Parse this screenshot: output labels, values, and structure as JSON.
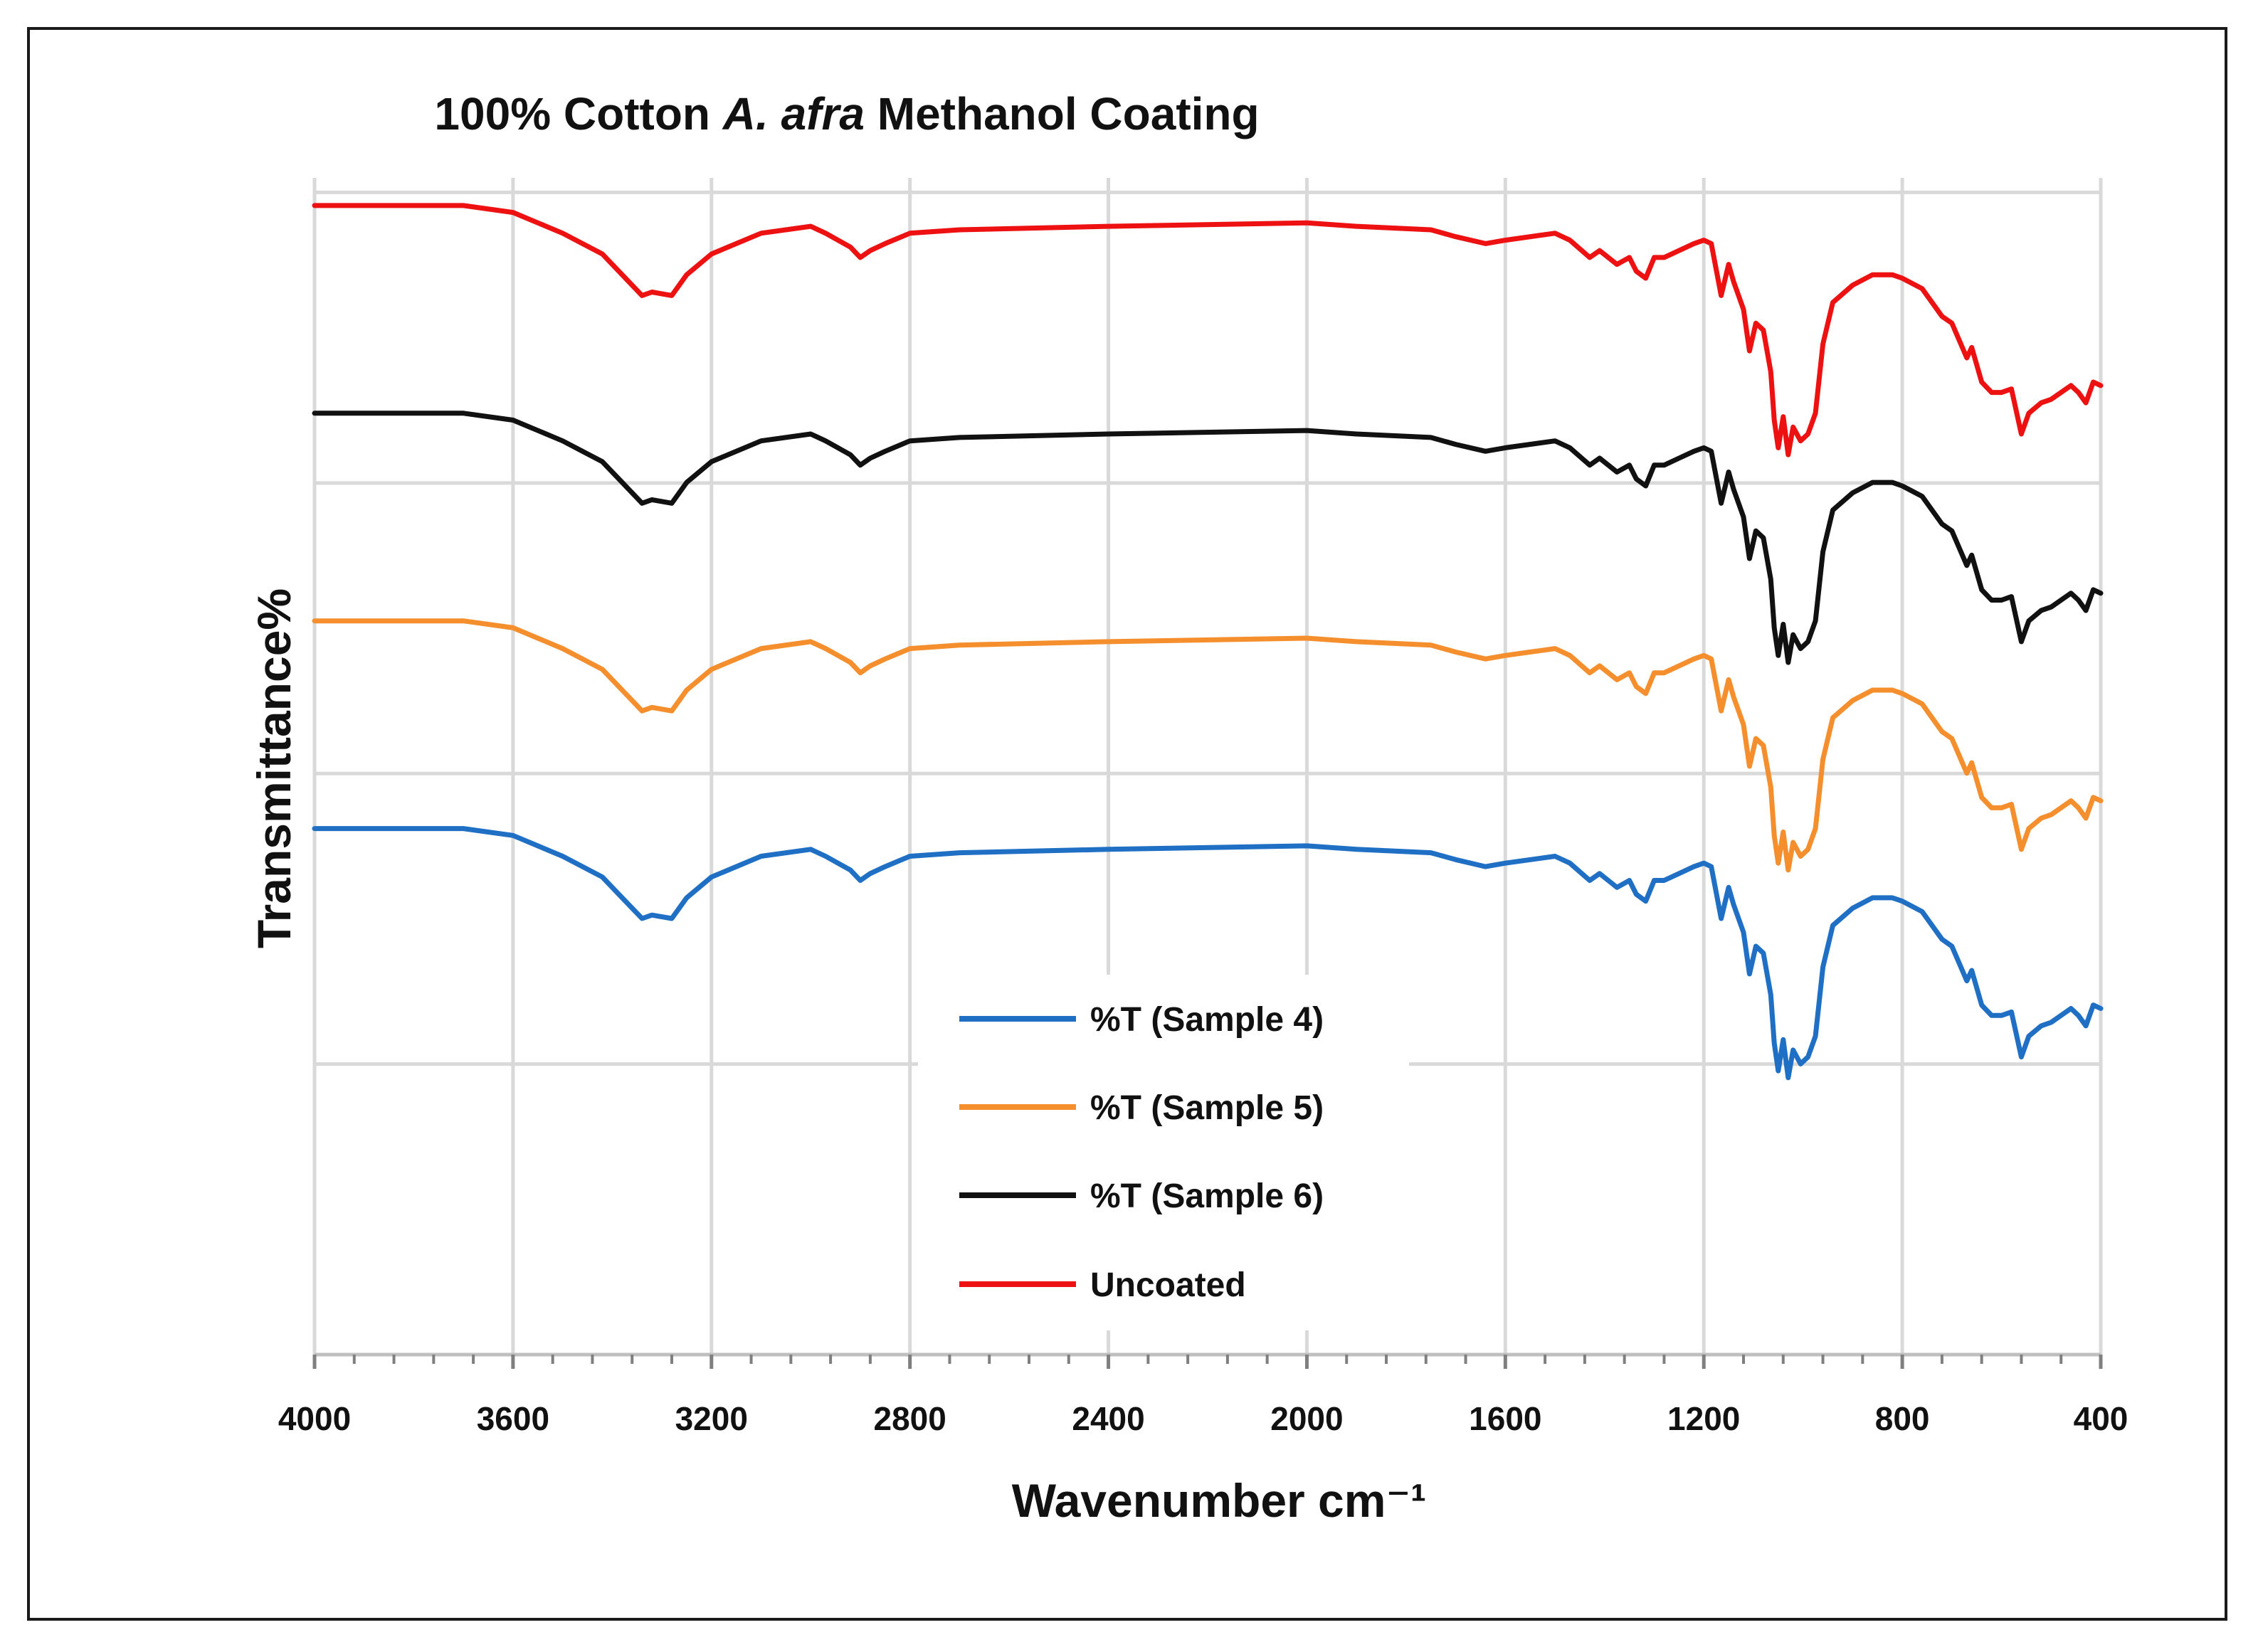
{
  "chart_data": {
    "type": "line",
    "title": {
      "prefix": "100% Cotton ",
      "italic": "A. afra",
      "suffix": " Methanol Coating"
    },
    "xlabel": "Wavenumber cm⁻¹",
    "ylabel": "Transmittance%",
    "xlim": [
      4000,
      400
    ],
    "x_ticks": [
      "4000",
      "3600",
      "3200",
      "2800",
      "2400",
      "2000",
      "1600",
      "1200",
      "800",
      "400"
    ],
    "y_ticks_labels": "none",
    "grid": true,
    "legend_position": "center-bottom",
    "x": [
      4000,
      3700,
      3600,
      3500,
      3420,
      3380,
      3340,
      3320,
      3280,
      3250,
      3200,
      3100,
      3000,
      2970,
      2920,
      2900,
      2880,
      2850,
      2800,
      2700,
      2400,
      2000,
      1900,
      1750,
      1700,
      1640,
      1600,
      1500,
      1470,
      1430,
      1410,
      1375,
      1350,
      1336,
      1317,
      1300,
      1280,
      1250,
      1220,
      1200,
      1185,
      1165,
      1150,
      1140,
      1120,
      1108,
      1095,
      1080,
      1065,
      1058,
      1050,
      1040,
      1030,
      1020,
      1005,
      990,
      975,
      960,
      940,
      900,
      860,
      820,
      800,
      760,
      720,
      700,
      670,
      660,
      640,
      620,
      600,
      580,
      560,
      545,
      520,
      500,
      480,
      460,
      445,
      430,
      415,
      400
    ],
    "series": [
      {
        "name": "%T (Sample 4)",
        "color": "#1f6fc5",
        "values": [
          7.6,
          7.6,
          7.5,
          7.2,
          6.9,
          6.6,
          6.3,
          6.35,
          6.3,
          6.6,
          6.9,
          7.2,
          7.3,
          7.2,
          7.0,
          6.85,
          6.95,
          7.05,
          7.2,
          7.25,
          7.3,
          7.35,
          7.3,
          7.25,
          7.15,
          7.05,
          7.1,
          7.2,
          7.1,
          6.85,
          6.95,
          6.75,
          6.85,
          6.65,
          6.55,
          6.85,
          6.85,
          6.95,
          7.05,
          7.1,
          7.05,
          6.3,
          6.75,
          6.5,
          6.1,
          5.5,
          5.9,
          5.8,
          5.2,
          4.5,
          4.1,
          4.55,
          4.0,
          4.4,
          4.2,
          4.3,
          4.6,
          5.6,
          6.2,
          6.45,
          6.6,
          6.6,
          6.55,
          6.4,
          6.0,
          5.9,
          5.4,
          5.55,
          5.05,
          4.9,
          4.9,
          4.95,
          4.3,
          4.6,
          4.75,
          4.8,
          4.9,
          5.0,
          4.9,
          4.75,
          5.05,
          5.0
        ]
      },
      {
        "name": "%T (Sample 5)",
        "color": "#f58f2e",
        "values": [
          7.6,
          7.6,
          7.5,
          7.2,
          6.9,
          6.6,
          6.3,
          6.35,
          6.3,
          6.6,
          6.9,
          7.2,
          7.3,
          7.2,
          7.0,
          6.85,
          6.95,
          7.05,
          7.2,
          7.25,
          7.3,
          7.35,
          7.3,
          7.25,
          7.15,
          7.05,
          7.1,
          7.2,
          7.1,
          6.85,
          6.95,
          6.75,
          6.85,
          6.65,
          6.55,
          6.85,
          6.85,
          6.95,
          7.05,
          7.1,
          7.05,
          6.3,
          6.75,
          6.5,
          6.1,
          5.5,
          5.9,
          5.8,
          5.2,
          4.5,
          4.1,
          4.55,
          4.0,
          4.4,
          4.2,
          4.3,
          4.6,
          5.6,
          6.2,
          6.45,
          6.6,
          6.6,
          6.55,
          6.4,
          6.0,
          5.9,
          5.4,
          5.55,
          5.05,
          4.9,
          4.9,
          4.95,
          4.3,
          4.6,
          4.75,
          4.8,
          4.9,
          5.0,
          4.9,
          4.75,
          5.05,
          5.0
        ]
      },
      {
        "name": "%T (Sample 6)",
        "color": "#111111",
        "values": [
          7.6,
          7.6,
          7.5,
          7.2,
          6.9,
          6.6,
          6.3,
          6.35,
          6.3,
          6.6,
          6.9,
          7.2,
          7.3,
          7.2,
          7.0,
          6.85,
          6.95,
          7.05,
          7.2,
          7.25,
          7.3,
          7.35,
          7.3,
          7.25,
          7.15,
          7.05,
          7.1,
          7.2,
          7.1,
          6.85,
          6.95,
          6.75,
          6.85,
          6.65,
          6.55,
          6.85,
          6.85,
          6.95,
          7.05,
          7.1,
          7.05,
          6.3,
          6.75,
          6.5,
          6.1,
          5.5,
          5.9,
          5.8,
          5.2,
          4.5,
          4.1,
          4.55,
          4.0,
          4.4,
          4.2,
          4.3,
          4.6,
          5.6,
          6.2,
          6.45,
          6.6,
          6.6,
          6.55,
          6.4,
          6.0,
          5.9,
          5.4,
          5.55,
          5.05,
          4.9,
          4.9,
          4.95,
          4.3,
          4.6,
          4.75,
          4.8,
          4.9,
          5.0,
          4.9,
          4.75,
          5.05,
          5.0
        ]
      },
      {
        "name": "Uncoated",
        "color": "#ee1111",
        "values": [
          7.6,
          7.6,
          7.5,
          7.2,
          6.9,
          6.6,
          6.3,
          6.35,
          6.3,
          6.6,
          6.9,
          7.2,
          7.3,
          7.2,
          7.0,
          6.85,
          6.95,
          7.05,
          7.2,
          7.25,
          7.3,
          7.35,
          7.3,
          7.25,
          7.15,
          7.05,
          7.1,
          7.2,
          7.1,
          6.85,
          6.95,
          6.75,
          6.85,
          6.65,
          6.55,
          6.85,
          6.85,
          6.95,
          7.05,
          7.1,
          7.05,
          6.3,
          6.75,
          6.5,
          6.1,
          5.5,
          5.9,
          5.8,
          5.2,
          4.5,
          4.1,
          4.55,
          4.0,
          4.4,
          4.2,
          4.3,
          4.6,
          5.6,
          6.2,
          6.45,
          6.6,
          6.6,
          6.55,
          6.4,
          6.0,
          5.9,
          5.4,
          5.55,
          5.05,
          4.9,
          4.9,
          4.95,
          4.3,
          4.6,
          4.75,
          4.8,
          4.9,
          5.0,
          4.9,
          4.75,
          5.05,
          5.0
        ]
      }
    ],
    "vertical_offsets": [
      0,
      3,
      6,
      9
    ],
    "ylim": [
      0,
      17
    ]
  }
}
